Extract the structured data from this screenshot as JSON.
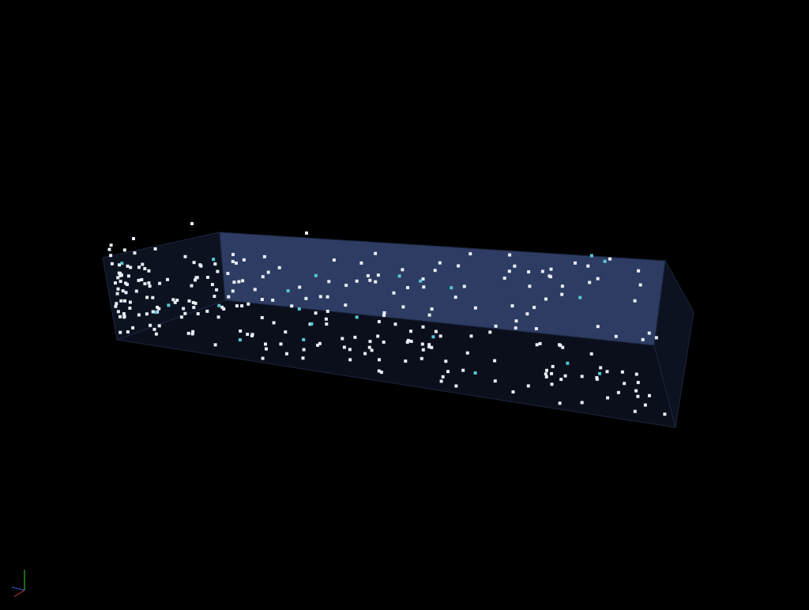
{
  "scene": {
    "background_color": "#000000",
    "box": {
      "top_face_color": "#2e3c63",
      "side_face_color": "#0d1220",
      "front_face_color": "#0b0f1b",
      "edge_color": "#1c2640"
    },
    "particles": {
      "colors": {
        "primary": "#e8eef6",
        "highlight": "#57c7d6"
      }
    }
  },
  "axes_indicator": {
    "colors": {
      "x": "#d43a3a",
      "y": "#3ad43a",
      "z": "#3a5ad4"
    }
  }
}
